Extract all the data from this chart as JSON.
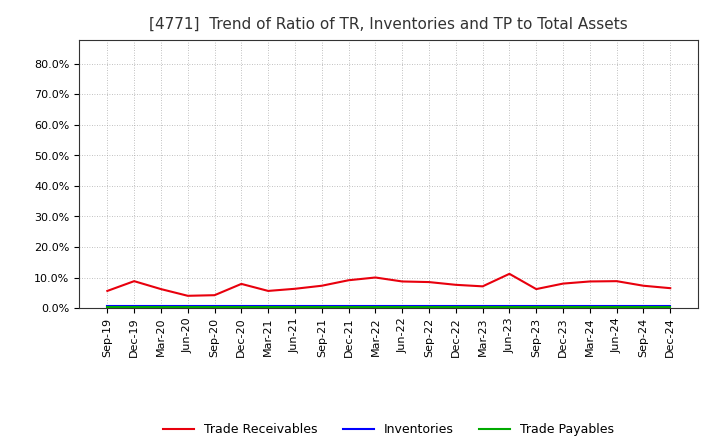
{
  "title": "[4771]  Trend of Ratio of TR, Inventories and TP to Total Assets",
  "x_labels": [
    "Sep-19",
    "Dec-19",
    "Mar-20",
    "Jun-20",
    "Sep-20",
    "Dec-20",
    "Mar-21",
    "Jun-21",
    "Sep-21",
    "Dec-21",
    "Mar-22",
    "Jun-22",
    "Sep-22",
    "Dec-22",
    "Mar-23",
    "Jun-23",
    "Sep-23",
    "Dec-23",
    "Mar-24",
    "Jun-24",
    "Sep-24",
    "Dec-24"
  ],
  "trade_receivables": [
    0.056,
    0.088,
    0.062,
    0.04,
    0.042,
    0.079,
    0.056,
    0.063,
    0.073,
    0.091,
    0.1,
    0.087,
    0.085,
    0.076,
    0.071,
    0.112,
    0.062,
    0.08,
    0.087,
    0.088,
    0.073,
    0.065
  ],
  "inventories": [
    0.006,
    0.006,
    0.006,
    0.006,
    0.006,
    0.006,
    0.006,
    0.006,
    0.006,
    0.006,
    0.006,
    0.006,
    0.006,
    0.006,
    0.006,
    0.006,
    0.006,
    0.006,
    0.006,
    0.006,
    0.006,
    0.006
  ],
  "trade_payables": [
    0.004,
    0.004,
    0.004,
    0.004,
    0.004,
    0.004,
    0.004,
    0.004,
    0.004,
    0.004,
    0.004,
    0.004,
    0.004,
    0.004,
    0.004,
    0.004,
    0.004,
    0.004,
    0.004,
    0.004,
    0.004,
    0.004
  ],
  "tr_color": "#e8000d",
  "inv_color": "#0000ff",
  "tp_color": "#00aa00",
  "tr_label": "Trade Receivables",
  "inv_label": "Inventories",
  "tp_label": "Trade Payables",
  "ylim_min": 0.0,
  "ylim_max": 0.88,
  "yticks": [
    0.0,
    0.1,
    0.2,
    0.3,
    0.4,
    0.5,
    0.6,
    0.7,
    0.8
  ],
  "ytick_labels": [
    "0.0%",
    "10.0%",
    "20.0%",
    "30.0%",
    "40.0%",
    "50.0%",
    "60.0%",
    "70.0%",
    "80.0%"
  ],
  "background_color": "#ffffff",
  "grid_color": "#999999",
  "title_fontsize": 11,
  "legend_fontsize": 9,
  "tick_fontsize": 8
}
